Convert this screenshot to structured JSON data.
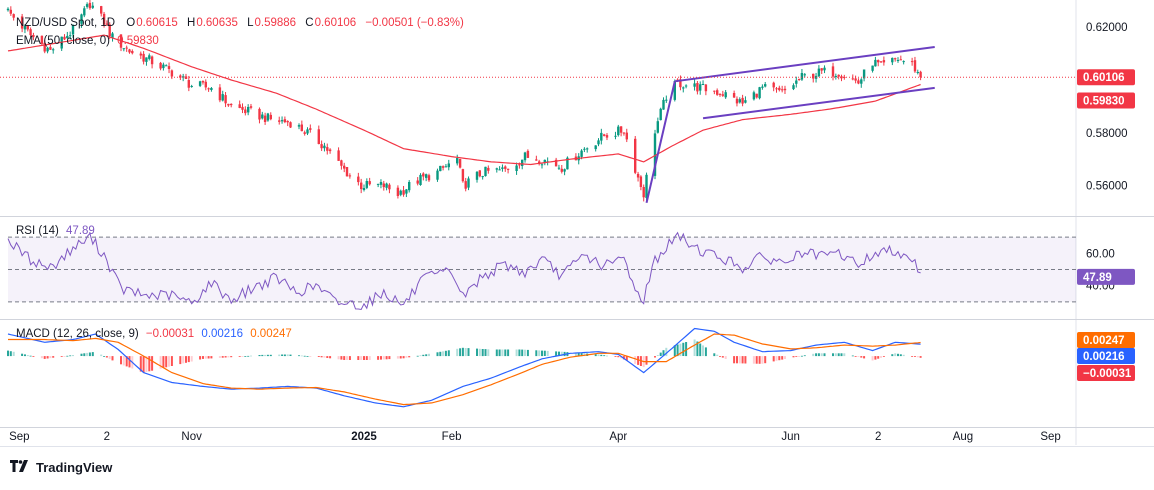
{
  "legend": {
    "symbol": "NZD/USD Spot, 1D",
    "o_label": "O",
    "o": "0.60615",
    "h_label": "H",
    "h": "0.60635",
    "l_label": "L",
    "l": "0.59886",
    "c_label": "C",
    "c": "0.60106",
    "change": "−0.00501 (−0.83%)",
    "ema_label": "EMA (50, close, 0)",
    "ema_value": "0.59830",
    "rsi_label": "RSI (14)",
    "rsi_value": "47.89",
    "macd_label": "MACD (12, 26, close, 9)",
    "macd_hist": "−0.00031",
    "macd_line": "0.00216",
    "macd_signal": "0.00247"
  },
  "price_axis": {
    "ticks": [
      "0.62000",
      "0.60000",
      "0.58000",
      "0.56000"
    ],
    "tick_values": [
      0.62,
      0.6,
      0.58,
      0.56
    ]
  },
  "rsi_axis": {
    "ticks": [
      "60.00",
      "40.00"
    ],
    "tick_values": [
      60,
      40
    ]
  },
  "time_axis": {
    "labels": [
      "Sep",
      "2",
      "Nov",
      "2025",
      "Feb",
      "Apr",
      "Jun",
      "2",
      "Aug",
      "Sep"
    ]
  },
  "badges": {
    "price": "0.60106",
    "ema": "0.59830",
    "rsi": "47.89",
    "macd_signal": "0.00247",
    "macd_line": "0.00216",
    "macd_hist": "−0.00031"
  },
  "footer": {
    "brand": "TradingView"
  },
  "colors": {
    "up": "#089981",
    "down": "#f23645",
    "ema": "#f23645",
    "rsi": "#7e57c2",
    "macd": "#2962ff",
    "signal": "#ff6d00",
    "channel": "#6a3fc1"
  },
  "chart_data": [
    {
      "type": "candlestick",
      "title": "NZD/USD Spot, 1D",
      "x_range": [
        "2024-08-28",
        "2025-09-10"
      ],
      "ylim": [
        0.5485,
        0.6265
      ],
      "close_path": [
        [
          "2024-08-28",
          0.626
        ],
        [
          "2024-09-05",
          0.617
        ],
        [
          "2024-09-12",
          0.611
        ],
        [
          "2024-09-20",
          0.619
        ],
        [
          "2024-09-26",
          0.629
        ],
        [
          "2024-10-01",
          0.622
        ],
        [
          "2024-10-04",
          0.616
        ],
        [
          "2024-10-10",
          0.611
        ],
        [
          "2024-10-18",
          0.607
        ],
        [
          "2024-10-25",
          0.603
        ],
        [
          "2024-11-01",
          0.598
        ],
        [
          "2024-11-08",
          0.597
        ],
        [
          "2024-11-12",
          0.593
        ],
        [
          "2024-11-15",
          0.59
        ],
        [
          "2024-11-21",
          0.588
        ],
        [
          "2024-11-29",
          0.585
        ],
        [
          "2024-12-06",
          0.584
        ],
        [
          "2024-12-12",
          0.58
        ],
        [
          "2024-12-18",
          0.575
        ],
        [
          "2024-12-24",
          0.567
        ],
        [
          "2024-12-31",
          0.56
        ],
        [
          "2025-01-08",
          0.56
        ],
        [
          "2025-01-13",
          0.557
        ],
        [
          "2025-01-20",
          0.562
        ],
        [
          "2025-01-27",
          0.565
        ],
        [
          "2025-02-03",
          0.57
        ],
        [
          "2025-02-05",
          0.56
        ],
        [
          "2025-02-12",
          0.565
        ],
        [
          "2025-02-20",
          0.566
        ],
        [
          "2025-02-27",
          0.571
        ],
        [
          "2025-03-05",
          0.57
        ],
        [
          "2025-03-12",
          0.567
        ],
        [
          "2025-03-20",
          0.574
        ],
        [
          "2025-03-27",
          0.579
        ],
        [
          "2025-04-03",
          0.581
        ],
        [
          "2025-04-08",
          0.563
        ],
        [
          "2025-04-10",
          0.557
        ],
        [
          "2025-04-14",
          0.581
        ],
        [
          "2025-04-18",
          0.594
        ],
        [
          "2025-04-22",
          0.599
        ],
        [
          "2025-04-30",
          0.597
        ],
        [
          "2025-05-08",
          0.595
        ],
        [
          "2025-05-15",
          0.591
        ],
        [
          "2025-05-22",
          0.597
        ],
        [
          "2025-05-29",
          0.595
        ],
        [
          "2025-06-05",
          0.601
        ],
        [
          "2025-06-12",
          0.603
        ],
        [
          "2025-06-18",
          0.603
        ],
        [
          "2025-06-25",
          0.599
        ],
        [
          "2025-06-30",
          0.607
        ],
        [
          "2025-07-03",
          0.605
        ],
        [
          "2025-07-09",
          0.608
        ],
        [
          "2025-07-14",
          0.606
        ],
        [
          "2025-07-17",
          0.601
        ]
      ],
      "ema_50_path": [
        [
          "2024-08-28",
          0.611
        ],
        [
          "2024-09-20",
          0.615
        ],
        [
          "2024-10-01",
          0.617
        ],
        [
          "2024-10-15",
          0.612
        ],
        [
          "2024-11-01",
          0.605
        ],
        [
          "2024-11-15",
          0.6
        ],
        [
          "2024-12-01",
          0.595
        ],
        [
          "2024-12-15",
          0.589
        ],
        [
          "2025-01-01",
          0.581
        ],
        [
          "2025-01-15",
          0.574
        ],
        [
          "2025-02-01",
          0.571
        ],
        [
          "2025-02-15",
          0.569
        ],
        [
          "2025-03-01",
          0.568
        ],
        [
          "2025-03-15",
          0.57
        ],
        [
          "2025-04-01",
          0.572
        ],
        [
          "2025-04-10",
          0.569
        ],
        [
          "2025-04-20",
          0.575
        ],
        [
          "2025-05-01",
          0.581
        ],
        [
          "2025-05-15",
          0.585
        ],
        [
          "2025-06-01",
          0.587
        ],
        [
          "2025-06-15",
          0.589
        ],
        [
          "2025-07-01",
          0.592
        ],
        [
          "2025-07-17",
          0.5983
        ]
      ],
      "annotations": {
        "impulse_line": [
          [
            "2025-04-11",
            0.5535
          ],
          [
            "2025-04-21",
            0.5995
          ]
        ],
        "channel_upper": [
          [
            "2025-04-21",
            0.5995
          ],
          [
            "2025-07-22",
            0.6125
          ]
        ],
        "channel_lower": [
          [
            "2025-05-01",
            0.5855
          ],
          [
            "2025-07-22",
            0.597
          ]
        ]
      },
      "last_price": 0.60106,
      "last_ema": 0.5983
    },
    {
      "type": "line",
      "title": "RSI (14)",
      "ylim": [
        20,
        80
      ],
      "bands": [
        70,
        50,
        30
      ],
      "series": [
        {
          "name": "RSI (14)",
          "points": [
            [
              "2024-08-28",
              68
            ],
            [
              "2024-09-05",
              56
            ],
            [
              "2024-09-12",
              51
            ],
            [
              "2024-09-20",
              63
            ],
            [
              "2024-09-26",
              70
            ],
            [
              "2024-10-01",
              59
            ],
            [
              "2024-10-07",
              38
            ],
            [
              "2024-10-15",
              34
            ],
            [
              "2024-10-25",
              34
            ],
            [
              "2024-11-01",
              29
            ],
            [
              "2024-11-08",
              42
            ],
            [
              "2024-11-15",
              31
            ],
            [
              "2024-11-22",
              38
            ],
            [
              "2024-12-01",
              45
            ],
            [
              "2024-12-08",
              36
            ],
            [
              "2024-12-15",
              40
            ],
            [
              "2024-12-22",
              30
            ],
            [
              "2025-01-01",
              28
            ],
            [
              "2025-01-08",
              36
            ],
            [
              "2025-01-15",
              28
            ],
            [
              "2025-01-22",
              44
            ],
            [
              "2025-02-01",
              49
            ],
            [
              "2025-02-05",
              33
            ],
            [
              "2025-02-12",
              46
            ],
            [
              "2025-02-20",
              53
            ],
            [
              "2025-02-27",
              48
            ],
            [
              "2025-03-05",
              56
            ],
            [
              "2025-03-12",
              46
            ],
            [
              "2025-03-20",
              59
            ],
            [
              "2025-03-27",
              52
            ],
            [
              "2025-04-03",
              57
            ],
            [
              "2025-04-08",
              34
            ],
            [
              "2025-04-10",
              32
            ],
            [
              "2025-04-14",
              56
            ],
            [
              "2025-04-22",
              71
            ],
            [
              "2025-04-30",
              62
            ],
            [
              "2025-05-08",
              57
            ],
            [
              "2025-05-15",
              51
            ],
            [
              "2025-05-22",
              58
            ],
            [
              "2025-05-29",
              54
            ],
            [
              "2025-06-05",
              60
            ],
            [
              "2025-06-12",
              58
            ],
            [
              "2025-06-18",
              60
            ],
            [
              "2025-06-25",
              53
            ],
            [
              "2025-07-01",
              60
            ],
            [
              "2025-07-08",
              62
            ],
            [
              "2025-07-14",
              57
            ],
            [
              "2025-07-17",
              47.89
            ]
          ]
        }
      ],
      "last_value": 47.89
    },
    {
      "type": "line",
      "title": "MACD (12, 26, close, 9)",
      "ylim": [
        -0.0125,
        0.006
      ],
      "series": [
        {
          "name": "MACD",
          "points": [
            [
              "2024-08-28",
              0.004
            ],
            [
              "2024-09-10",
              0.0025
            ],
            [
              "2024-09-20",
              0.003
            ],
            [
              "2024-09-28",
              0.004
            ],
            [
              "2024-10-06",
              0.0012
            ],
            [
              "2024-10-15",
              -0.003
            ],
            [
              "2024-10-25",
              -0.0048
            ],
            [
              "2024-11-05",
              -0.0055
            ],
            [
              "2024-11-15",
              -0.006
            ],
            [
              "2024-11-25",
              -0.0058
            ],
            [
              "2024-12-05",
              -0.0055
            ],
            [
              "2024-12-15",
              -0.0058
            ],
            [
              "2024-12-25",
              -0.0072
            ],
            [
              "2025-01-05",
              -0.0085
            ],
            [
              "2025-01-15",
              -0.0092
            ],
            [
              "2025-01-25",
              -0.008
            ],
            [
              "2025-02-05",
              -0.0055
            ],
            [
              "2025-02-15",
              -0.004
            ],
            [
              "2025-02-25",
              -0.002
            ],
            [
              "2025-03-05",
              -0.0005
            ],
            [
              "2025-03-15",
              0.0005
            ],
            [
              "2025-03-25",
              0.0008
            ],
            [
              "2025-04-01",
              0.0003
            ],
            [
              "2025-04-10",
              -0.003
            ],
            [
              "2025-04-18",
              0.0005
            ],
            [
              "2025-04-28",
              0.005
            ],
            [
              "2025-05-05",
              0.0045
            ],
            [
              "2025-05-12",
              0.0025
            ],
            [
              "2025-05-22",
              0.0008
            ],
            [
              "2025-06-01",
              0.001
            ],
            [
              "2025-06-10",
              0.002
            ],
            [
              "2025-06-20",
              0.0025
            ],
            [
              "2025-06-30",
              0.001
            ],
            [
              "2025-07-08",
              0.0025
            ],
            [
              "2025-07-17",
              0.00216
            ]
          ]
        },
        {
          "name": "Signal",
          "points": [
            [
              "2024-08-28",
              0.003
            ],
            [
              "2024-09-10",
              0.003
            ],
            [
              "2024-09-20",
              0.0028
            ],
            [
              "2024-09-28",
              0.0032
            ],
            [
              "2024-10-06",
              0.0025
            ],
            [
              "2024-10-15",
              0.0
            ],
            [
              "2024-10-25",
              -0.003
            ],
            [
              "2024-11-05",
              -0.005
            ],
            [
              "2024-11-15",
              -0.0058
            ],
            [
              "2024-11-25",
              -0.006
            ],
            [
              "2024-12-05",
              -0.0058
            ],
            [
              "2024-12-15",
              -0.0057
            ],
            [
              "2024-12-25",
              -0.0065
            ],
            [
              "2025-01-05",
              -0.0078
            ],
            [
              "2025-01-15",
              -0.0088
            ],
            [
              "2025-01-25",
              -0.0085
            ],
            [
              "2025-02-05",
              -0.007
            ],
            [
              "2025-02-15",
              -0.0052
            ],
            [
              "2025-02-25",
              -0.0032
            ],
            [
              "2025-03-05",
              -0.0015
            ],
            [
              "2025-03-15",
              -0.0002
            ],
            [
              "2025-03-25",
              0.0005
            ],
            [
              "2025-04-01",
              0.0005
            ],
            [
              "2025-04-10",
              -0.001
            ],
            [
              "2025-04-18",
              -0.001
            ],
            [
              "2025-04-28",
              0.002
            ],
            [
              "2025-05-05",
              0.004
            ],
            [
              "2025-05-12",
              0.0038
            ],
            [
              "2025-05-22",
              0.0022
            ],
            [
              "2025-06-01",
              0.0013
            ],
            [
              "2025-06-10",
              0.0015
            ],
            [
              "2025-06-20",
              0.002
            ],
            [
              "2025-06-30",
              0.0018
            ],
            [
              "2025-07-08",
              0.002
            ],
            [
              "2025-07-17",
              0.00247
            ]
          ]
        }
      ],
      "histogram": "MACD minus Signal",
      "last_values": {
        "macd": 0.00216,
        "signal": 0.00247,
        "histogram": -0.00031
      }
    }
  ]
}
